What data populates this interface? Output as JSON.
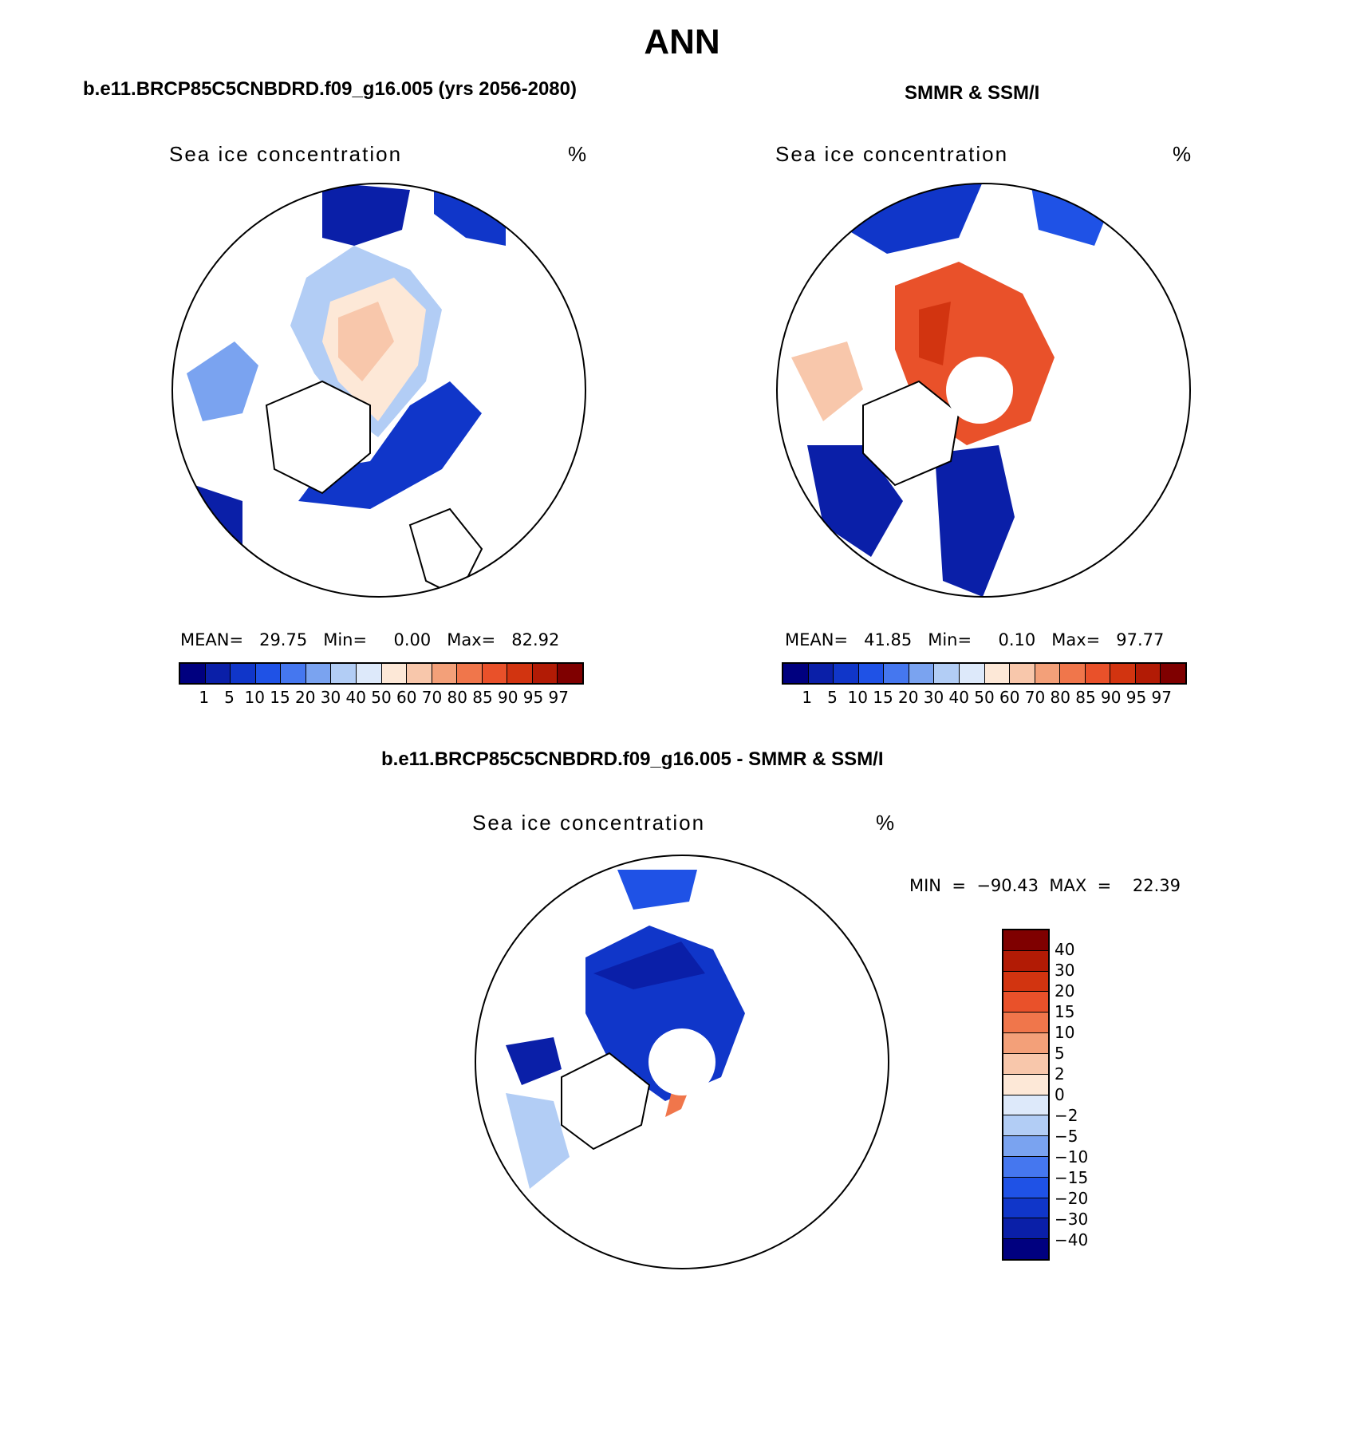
{
  "title": "ANN",
  "panels": {
    "model": {
      "title": "b.e11.BRCP85C5CNBDRD.f09_g16.005 (yrs 2056-2080)",
      "var_label": "Sea ice concentration",
      "units": "%",
      "stats": "MEAN=   29.75   Min=     0.00   Max=   82.92"
    },
    "obs": {
      "title": "SMMR & SSM/I",
      "var_label": "Sea ice concentration",
      "units": "%",
      "stats": "MEAN=   41.85   Min=     0.10   Max=   97.77"
    },
    "diff": {
      "title": "b.e11.BRCP85C5CNBDRD.f09_g16.005 - SMMR & SSM/I",
      "var_label": "Sea ice concentration",
      "units": "%",
      "stats": "MIN  =  −90.43  MAX  =    22.39"
    }
  },
  "colorbar_abs": {
    "levels": [
      "1",
      "5",
      "10",
      "15",
      "20",
      "30",
      "40",
      "50",
      "60",
      "70",
      "80",
      "85",
      "90",
      "95",
      "97"
    ],
    "colors": [
      "#00007f",
      "#0a1fa8",
      "#1036c9",
      "#1f52e6",
      "#4577ef",
      "#7aa3f0",
      "#b2cdf5",
      "#dde9fa",
      "#fde8d7",
      "#f8c7ab",
      "#f3a079",
      "#f0764b",
      "#e9512a",
      "#d23410",
      "#b21b05",
      "#7f0000"
    ]
  },
  "colorbar_diff": {
    "levels": [
      "40",
      "30",
      "20",
      "15",
      "10",
      "5",
      "2",
      "0",
      "−2",
      "−5",
      "−10",
      "−15",
      "−20",
      "−30",
      "−40"
    ],
    "colors": [
      "#7f0000",
      "#b21b05",
      "#d23410",
      "#e9512a",
      "#f0764b",
      "#f3a079",
      "#f8c7ab",
      "#fde8d7",
      "#dde9fa",
      "#b2cdf5",
      "#7aa3f0",
      "#4577ef",
      "#1f52e6",
      "#1036c9",
      "#0a1fa8",
      "#00007f"
    ]
  }
}
